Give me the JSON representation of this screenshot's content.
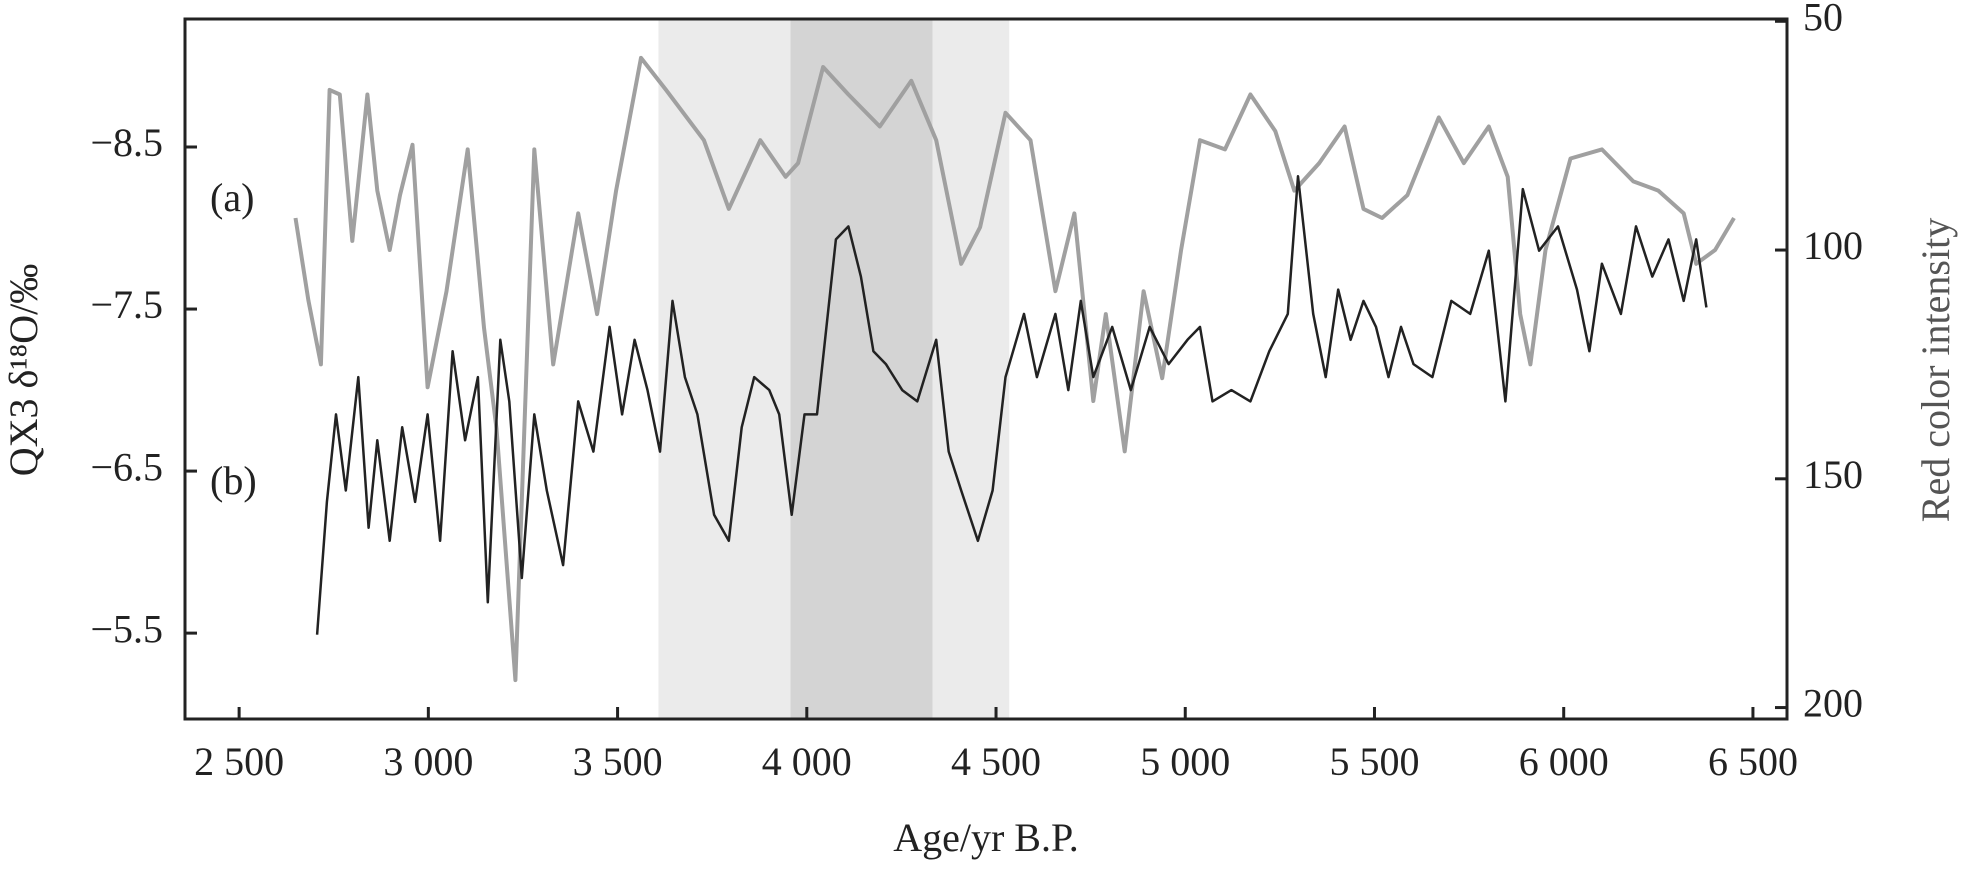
{
  "chart_data": {
    "type": "line",
    "xlabel": "Age/yr B.P.",
    "ylabel": "QX3 δ¹⁸O/‰",
    "y2label": "Red color intensity",
    "annotations": [
      "(a)",
      "(b)"
    ],
    "xlim": [
      2357,
      6590
    ],
    "xticks": [
      {
        "value": 2500,
        "label": "2 500"
      },
      {
        "value": 3000,
        "label": "3 000"
      },
      {
        "value": 3500,
        "label": "3 500"
      },
      {
        "value": 4000,
        "label": "4 000"
      },
      {
        "value": 4500,
        "label": "4 500"
      },
      {
        "value": 5000,
        "label": "5 000"
      },
      {
        "value": 5500,
        "label": "5 500"
      },
      {
        "value": 6000,
        "label": "6 000"
      },
      {
        "value": 6500,
        "label": "6 500"
      }
    ],
    "ylim": [
      -4.97,
      -9.29
    ],
    "yticks": [
      {
        "value": -8.5,
        "label": "−8.5"
      },
      {
        "value": -7.5,
        "label": "−7.5"
      },
      {
        "value": -6.5,
        "label": "−6.5"
      },
      {
        "value": -5.5,
        "label": "−5.5"
      }
    ],
    "y2lim": [
      202.5,
      49.5
    ],
    "y2ticks": [
      50,
      100,
      150,
      200
    ],
    "shaded_ranges": [
      [
        3608,
        4535
      ],
      [
        3957,
        4332
      ]
    ],
    "shade_colors": [
      "#ebebeb",
      "#d4d4d4"
    ],
    "series": [
      {
        "color": "#a0a0a0",
        "axis": "y2",
        "x": [
          2649,
          2683,
          2716,
          2739,
          2766,
          2799,
          2839,
          2865,
          2898,
          2925,
          2958,
          2998,
          3048,
          3104,
          3147,
          3180,
          3230,
          3280,
          3330,
          3396,
          3446,
          3496,
          3562,
          3628,
          3728,
          3794,
          3877,
          3944,
          3977,
          4043,
          4110,
          4193,
          4276,
          4342,
          4408,
          4458,
          4525,
          4591,
          4657,
          4707,
          4757,
          4790,
          4840,
          4890,
          4939,
          4989,
          5039,
          5105,
          5172,
          5238,
          5288,
          5354,
          5421,
          5471,
          5520,
          5587,
          5670,
          5736,
          5802,
          5852,
          5885,
          5912,
          5952,
          6018,
          6101,
          6184,
          6250,
          6317,
          6350,
          6400,
          6450
        ],
        "values": [
          93,
          111,
          125,
          65,
          66,
          98,
          66,
          87,
          100,
          88,
          77,
          130,
          109,
          78,
          117,
          139,
          194,
          78,
          125,
          92,
          114,
          87,
          58,
          65,
          76,
          91,
          76,
          84,
          81,
          60,
          66,
          73,
          63,
          76,
          103,
          95,
          70,
          76,
          109,
          92,
          133,
          114,
          144,
          109,
          128,
          100,
          76,
          78,
          66,
          74,
          87,
          81,
          73,
          91,
          93,
          88,
          71,
          81,
          73,
          84,
          114,
          125,
          100,
          80,
          78,
          85,
          87,
          92,
          103,
          100,
          93
        ]
      },
      {
        "color": "#222222",
        "axis": "y",
        "x": [
          2706,
          2732,
          2756,
          2782,
          2815,
          2842,
          2865,
          2898,
          2931,
          2965,
          2998,
          3031,
          3064,
          3097,
          3131,
          3157,
          3190,
          3214,
          3247,
          3280,
          3313,
          3356,
          3396,
          3436,
          3479,
          3512,
          3545,
          3579,
          3612,
          3645,
          3678,
          3711,
          3755,
          3794,
          3828,
          3861,
          3901,
          3927,
          3960,
          3994,
          4027,
          4077,
          4110,
          4143,
          4176,
          4209,
          4252,
          4292,
          4342,
          4375,
          4408,
          4452,
          4491,
          4525,
          4574,
          4608,
          4657,
          4691,
          4724,
          4757,
          4807,
          4856,
          4906,
          4956,
          5006,
          5039,
          5072,
          5122,
          5172,
          5222,
          5271,
          5298,
          5338,
          5371,
          5404,
          5437,
          5471,
          5504,
          5537,
          5570,
          5603,
          5653,
          5703,
          5753,
          5802,
          5846,
          5892,
          5935,
          5985,
          6035,
          6068,
          6101,
          6151,
          6191,
          6234,
          6277,
          6317,
          6350,
          6377
        ],
        "values": [
          -5.49,
          -6.31,
          -6.85,
          -6.38,
          -7.08,
          -6.15,
          -6.69,
          -6.07,
          -6.77,
          -6.31,
          -6.85,
          -6.07,
          -7.24,
          -6.69,
          -7.08,
          -5.69,
          -7.31,
          -6.93,
          -5.84,
          -6.85,
          -6.38,
          -5.92,
          -6.93,
          -6.62,
          -7.39,
          -6.85,
          -7.31,
          -7.0,
          -6.62,
          -7.55,
          -7.08,
          -6.85,
          -6.23,
          -6.07,
          -6.77,
          -7.08,
          -7.0,
          -6.85,
          -6.23,
          -6.85,
          -6.85,
          -7.93,
          -8.01,
          -7.7,
          -7.24,
          -7.16,
          -7.0,
          -6.93,
          -7.31,
          -6.62,
          -6.38,
          -6.07,
          -6.38,
          -7.08,
          -7.47,
          -7.08,
          -7.47,
          -7.0,
          -7.55,
          -7.08,
          -7.39,
          -7.0,
          -7.39,
          -7.16,
          -7.31,
          -7.39,
          -6.93,
          -7.0,
          -6.93,
          -7.24,
          -7.47,
          -8.32,
          -7.47,
          -7.08,
          -7.62,
          -7.31,
          -7.55,
          -7.39,
          -7.08,
          -7.39,
          -7.16,
          -7.08,
          -7.55,
          -7.47,
          -7.86,
          -6.93,
          -8.24,
          -7.86,
          -8.01,
          -7.62,
          -7.24,
          -7.78,
          -7.47,
          -8.01,
          -7.7,
          -7.93,
          -7.55,
          -7.93,
          -7.51
        ]
      }
    ]
  }
}
